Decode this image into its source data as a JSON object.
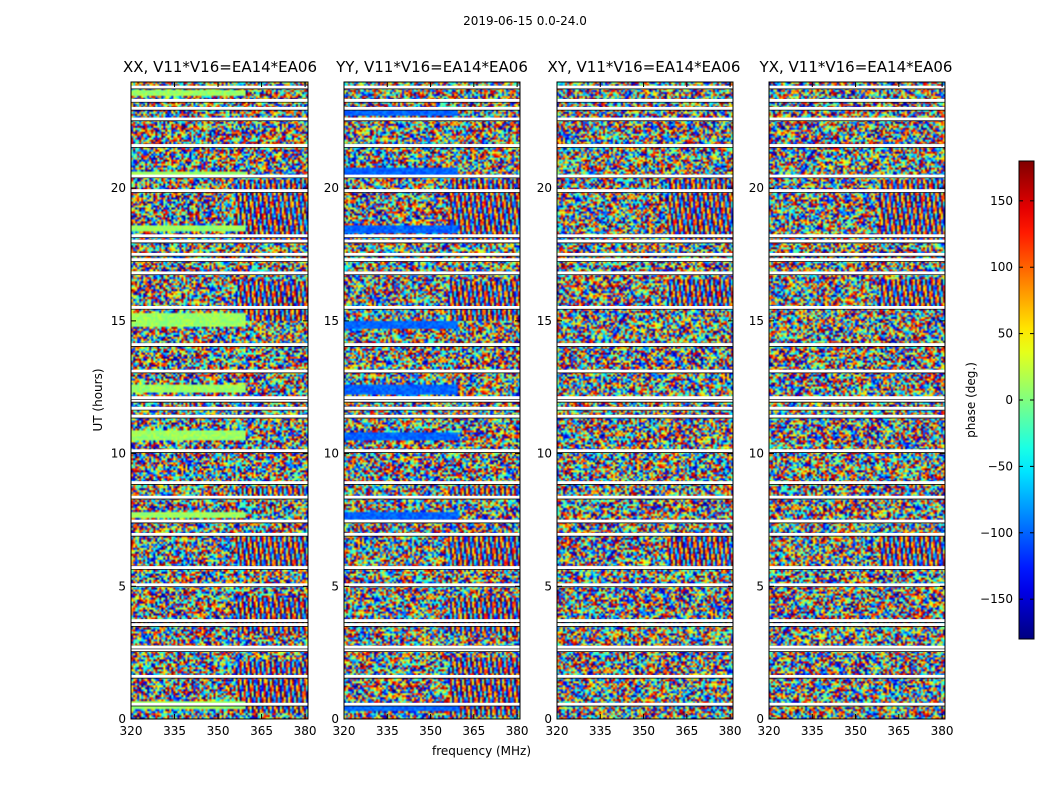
{
  "figure": {
    "suptitle": "2019-06-15 0.0-24.0",
    "xlabel": "frequency (MHz)",
    "ylabel": "UT (hours)",
    "colorbar_label": "phase (deg.)",
    "colormap": "jet"
  },
  "chart_data": [
    {
      "type": "heatmap",
      "title": "XX, V11*V16=EA14*EA06",
      "xlabel": "",
      "ylabel": "UT (hours)",
      "xlim": [
        320,
        381
      ],
      "ylim": [
        0,
        24
      ],
      "xticks": [
        320,
        335,
        350,
        365,
        380
      ],
      "yticks": [
        0,
        5,
        10,
        15,
        20
      ],
      "ytick_labels": [
        "0",
        "5",
        "10",
        "15",
        "20"
      ],
      "value_label": "phase (deg.)",
      "value_range": [
        -180,
        180
      ],
      "flagged_hours": [
        0.55,
        1.6,
        2.6,
        2.7,
        3.55,
        3.7,
        5.05,
        5.7,
        6.95,
        7.45,
        8.35,
        8.9,
        10.1,
        11.4,
        11.7,
        12.0,
        12.1,
        13.1,
        14.1,
        15.5,
        16.8,
        17.3,
        17.5,
        18.0,
        18.2,
        19.9,
        20.45,
        21.6,
        22.6,
        23.0,
        23.3,
        23.8
      ],
      "banded_hours": [
        [
          0.4,
          0.7
        ],
        [
          7.6,
          7.8
        ],
        [
          10.5,
          10.9
        ],
        [
          12.3,
          12.6
        ],
        [
          14.8,
          15.3
        ],
        [
          18.4,
          18.6
        ],
        [
          20.4,
          20.6
        ],
        [
          23.5,
          23.7
        ]
      ],
      "banded_phase": 10,
      "fringe_hours": [
        [
          0.2,
          2.2
        ],
        [
          3.2,
          4.6
        ],
        [
          5.6,
          6.9
        ],
        [
          8.3,
          8.8
        ],
        [
          15.0,
          16.5
        ],
        [
          17.9,
          20.3
        ]
      ],
      "fringe_start_mhz": 356
    },
    {
      "type": "heatmap",
      "title": "YY, V11*V16=EA14*EA06",
      "xlabel": "frequency (MHz)",
      "ylabel": "",
      "xlim": [
        320,
        381
      ],
      "ylim": [
        0,
        24
      ],
      "xticks": [
        320,
        335,
        350,
        365,
        380
      ],
      "yticks": [
        0,
        5,
        10,
        15,
        20
      ],
      "ytick_labels": [
        "0",
        "5",
        "10",
        "15",
        "20"
      ],
      "value_label": "phase (deg.)",
      "value_range": [
        -180,
        180
      ],
      "flagged_hours": [
        0.55,
        1.6,
        2.6,
        2.7,
        3.55,
        3.7,
        5.05,
        5.7,
        6.95,
        7.45,
        8.35,
        8.9,
        10.1,
        11.4,
        11.7,
        12.0,
        12.1,
        13.1,
        14.1,
        15.5,
        16.8,
        17.3,
        17.5,
        18.0,
        18.2,
        19.9,
        20.45,
        21.6,
        22.6,
        23.0,
        23.3,
        23.8
      ],
      "banded_hours": [
        [
          0.3,
          0.6
        ],
        [
          7.5,
          7.8
        ],
        [
          10.5,
          10.8
        ],
        [
          12.2,
          12.6
        ],
        [
          14.7,
          15.0
        ],
        [
          18.3,
          18.6
        ],
        [
          20.4,
          20.8
        ],
        [
          22.7,
          23.0
        ]
      ],
      "banded_phase": -100,
      "fringe_hours": [
        [
          0.1,
          2.3
        ],
        [
          3.2,
          4.6
        ],
        [
          5.6,
          6.9
        ],
        [
          8.3,
          8.8
        ],
        [
          15.0,
          16.5
        ],
        [
          17.9,
          20.3
        ]
      ],
      "fringe_start_mhz": 356
    },
    {
      "type": "heatmap",
      "title": "XY, V11*V16=EA14*EA06",
      "xlabel": "",
      "ylabel": "",
      "xlim": [
        320,
        381
      ],
      "ylim": [
        0,
        24
      ],
      "xticks": [
        320,
        335,
        350,
        365,
        380
      ],
      "yticks": [
        0,
        5,
        10,
        15,
        20
      ],
      "ytick_labels": [
        "0",
        "5",
        "10",
        "15",
        "20"
      ],
      "value_label": "phase (deg.)",
      "value_range": [
        -180,
        180
      ],
      "flagged_hours": [
        0.55,
        1.6,
        2.6,
        2.7,
        3.55,
        3.7,
        5.05,
        5.7,
        6.95,
        7.45,
        8.35,
        8.9,
        10.1,
        11.4,
        11.7,
        12.0,
        12.1,
        13.1,
        14.1,
        15.5,
        16.8,
        17.3,
        17.5,
        18.0,
        18.2,
        19.9,
        20.45,
        21.6,
        22.6,
        23.0,
        23.3,
        23.8
      ],
      "banded_hours": [],
      "banded_phase": 0,
      "fringe_hours": [
        [
          15.5,
          16.6
        ],
        [
          17.9,
          20.3
        ],
        [
          5.6,
          6.9
        ]
      ],
      "fringe_start_mhz": 358
    },
    {
      "type": "heatmap",
      "title": "YX, V11*V16=EA14*EA06",
      "xlabel": "",
      "ylabel": "",
      "xlim": [
        320,
        381
      ],
      "ylim": [
        0,
        24
      ],
      "xticks": [
        320,
        335,
        350,
        365,
        380
      ],
      "yticks": [
        0,
        5,
        10,
        15,
        20
      ],
      "ytick_labels": [
        "0",
        "5",
        "10",
        "15",
        "20"
      ],
      "value_label": "phase (deg.)",
      "value_range": [
        -180,
        180
      ],
      "flagged_hours": [
        0.55,
        1.6,
        2.6,
        2.7,
        3.55,
        3.7,
        5.05,
        5.7,
        6.95,
        7.45,
        8.35,
        8.9,
        10.1,
        11.4,
        11.7,
        12.0,
        12.1,
        13.1,
        14.1,
        15.5,
        16.8,
        17.3,
        17.5,
        18.0,
        18.2,
        19.9,
        20.45,
        21.6,
        22.6,
        23.0,
        23.3,
        23.8
      ],
      "banded_hours": [],
      "banded_phase": 0,
      "fringe_hours": [
        [
          15.5,
          16.6
        ],
        [
          17.9,
          20.3
        ],
        [
          5.6,
          6.9
        ]
      ],
      "fringe_start_mhz": 358
    }
  ],
  "colorbar": {
    "ticks": [
      150,
      100,
      50,
      0,
      -50,
      -100,
      -150
    ],
    "tick_labels": [
      "150",
      "100",
      "50",
      "0",
      "−50",
      "−100",
      "−150"
    ],
    "range": [
      -180,
      180
    ]
  }
}
